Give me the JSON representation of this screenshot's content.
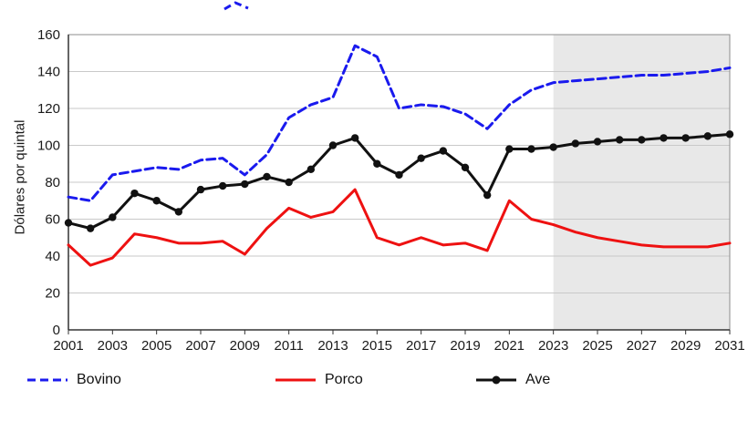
{
  "chart_data": {
    "type": "line",
    "title": "",
    "xlabel": "",
    "ylabel": "Dólares por quintal",
    "ylim": [
      0,
      160
    ],
    "ytick_step": 20,
    "x_range": [
      2001,
      2031
    ],
    "xtick_step": 2,
    "grid": "horizontal",
    "legend_position": "bottom",
    "projection_shade_start": 2023,
    "projection_shade_color": "#e8e8e8",
    "x": [
      2001,
      2002,
      2003,
      2004,
      2005,
      2006,
      2007,
      2008,
      2009,
      2010,
      2011,
      2012,
      2013,
      2014,
      2015,
      2016,
      2017,
      2018,
      2019,
      2020,
      2021,
      2022,
      2023,
      2024,
      2025,
      2026,
      2027,
      2028,
      2029,
      2030,
      2031
    ],
    "series": [
      {
        "name": "Bovino",
        "color": "#1a1aee",
        "style": "dashed",
        "values": [
          72,
          70,
          84,
          86,
          88,
          87,
          92,
          93,
          84,
          95,
          115,
          122,
          126,
          154,
          148,
          120,
          122,
          121,
          117,
          109,
          122,
          130,
          134,
          135,
          136,
          137,
          138,
          138,
          139,
          140,
          142
        ]
      },
      {
        "name": "Porco",
        "color": "#ee1111",
        "style": "solid",
        "values": [
          46,
          35,
          39,
          52,
          50,
          47,
          47,
          48,
          41,
          55,
          66,
          61,
          64,
          76,
          50,
          46,
          50,
          46,
          47,
          43,
          70,
          60,
          57,
          53,
          50,
          48,
          46,
          45,
          45,
          45,
          47
        ]
      },
      {
        "name": "Ave",
        "color": "#111111",
        "style": "solid-markers",
        "values": [
          58,
          55,
          61,
          74,
          70,
          64,
          76,
          78,
          79,
          83,
          80,
          87,
          100,
          104,
          90,
          84,
          93,
          97,
          88,
          73,
          98,
          98,
          99,
          101,
          102,
          103,
          103,
          104,
          104,
          105,
          106
        ]
      }
    ]
  }
}
